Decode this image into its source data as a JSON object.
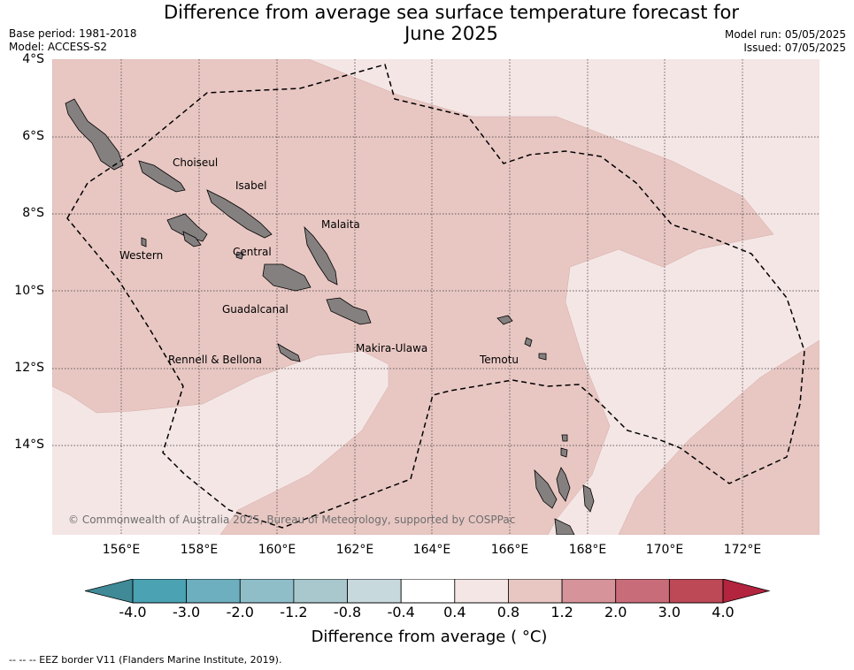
{
  "title": "Difference from average sea surface temperature forecast for June 2025",
  "title_line1": "Difference from average sea surface temperature forecast for",
  "title_line2": "June 2025",
  "meta_left": {
    "base_period": "Base period: 1981-2018",
    "model": "Model: ACCESS-S2"
  },
  "meta_right": {
    "model_run": "Model run: 05/05/2025",
    "issued": "Issued: 07/05/2025"
  },
  "lat_labels": [
    "4°S",
    "6°S",
    "8°S",
    "10°S",
    "12°S",
    "14°S"
  ],
  "lon_labels": [
    "156°E",
    "158°E",
    "160°E",
    "162°E",
    "164°E",
    "166°E",
    "168°E",
    "170°E",
    "172°E"
  ],
  "provinces": [
    "Choiseul",
    "Isabel",
    "Malaita",
    "Western",
    "Central",
    "Guadalcanal",
    "Makira-Ulawa",
    "Rennell & Bellona",
    "Temotu"
  ],
  "copyright": "© Commonwealth of Australia 2025, Bureau of Meteorology, supported by COSPPac",
  "colorbar": {
    "ticks": [
      "-4.0",
      "-3.0",
      "-2.0",
      "-1.2",
      "-0.8",
      "-0.4",
      "0.4",
      "0.8",
      "1.2",
      "2.0",
      "3.0",
      "4.0"
    ],
    "colors": [
      "#4aa2b3",
      "#6eafbf",
      "#8fbec9",
      "#a9c8cd",
      "#c8d9dd",
      "#ffffff",
      "#f4e6e5",
      "#e8c7c3",
      "#d6939a",
      "#c96c79",
      "#bd4856"
    ],
    "extend_low": "#3f8a96",
    "extend_high": "#b3243e",
    "label": "Difference from average ( °C)"
  },
  "footnote": "--  --  -- EEZ border V11 (Flanders Marine Institute, 2019)."
}
